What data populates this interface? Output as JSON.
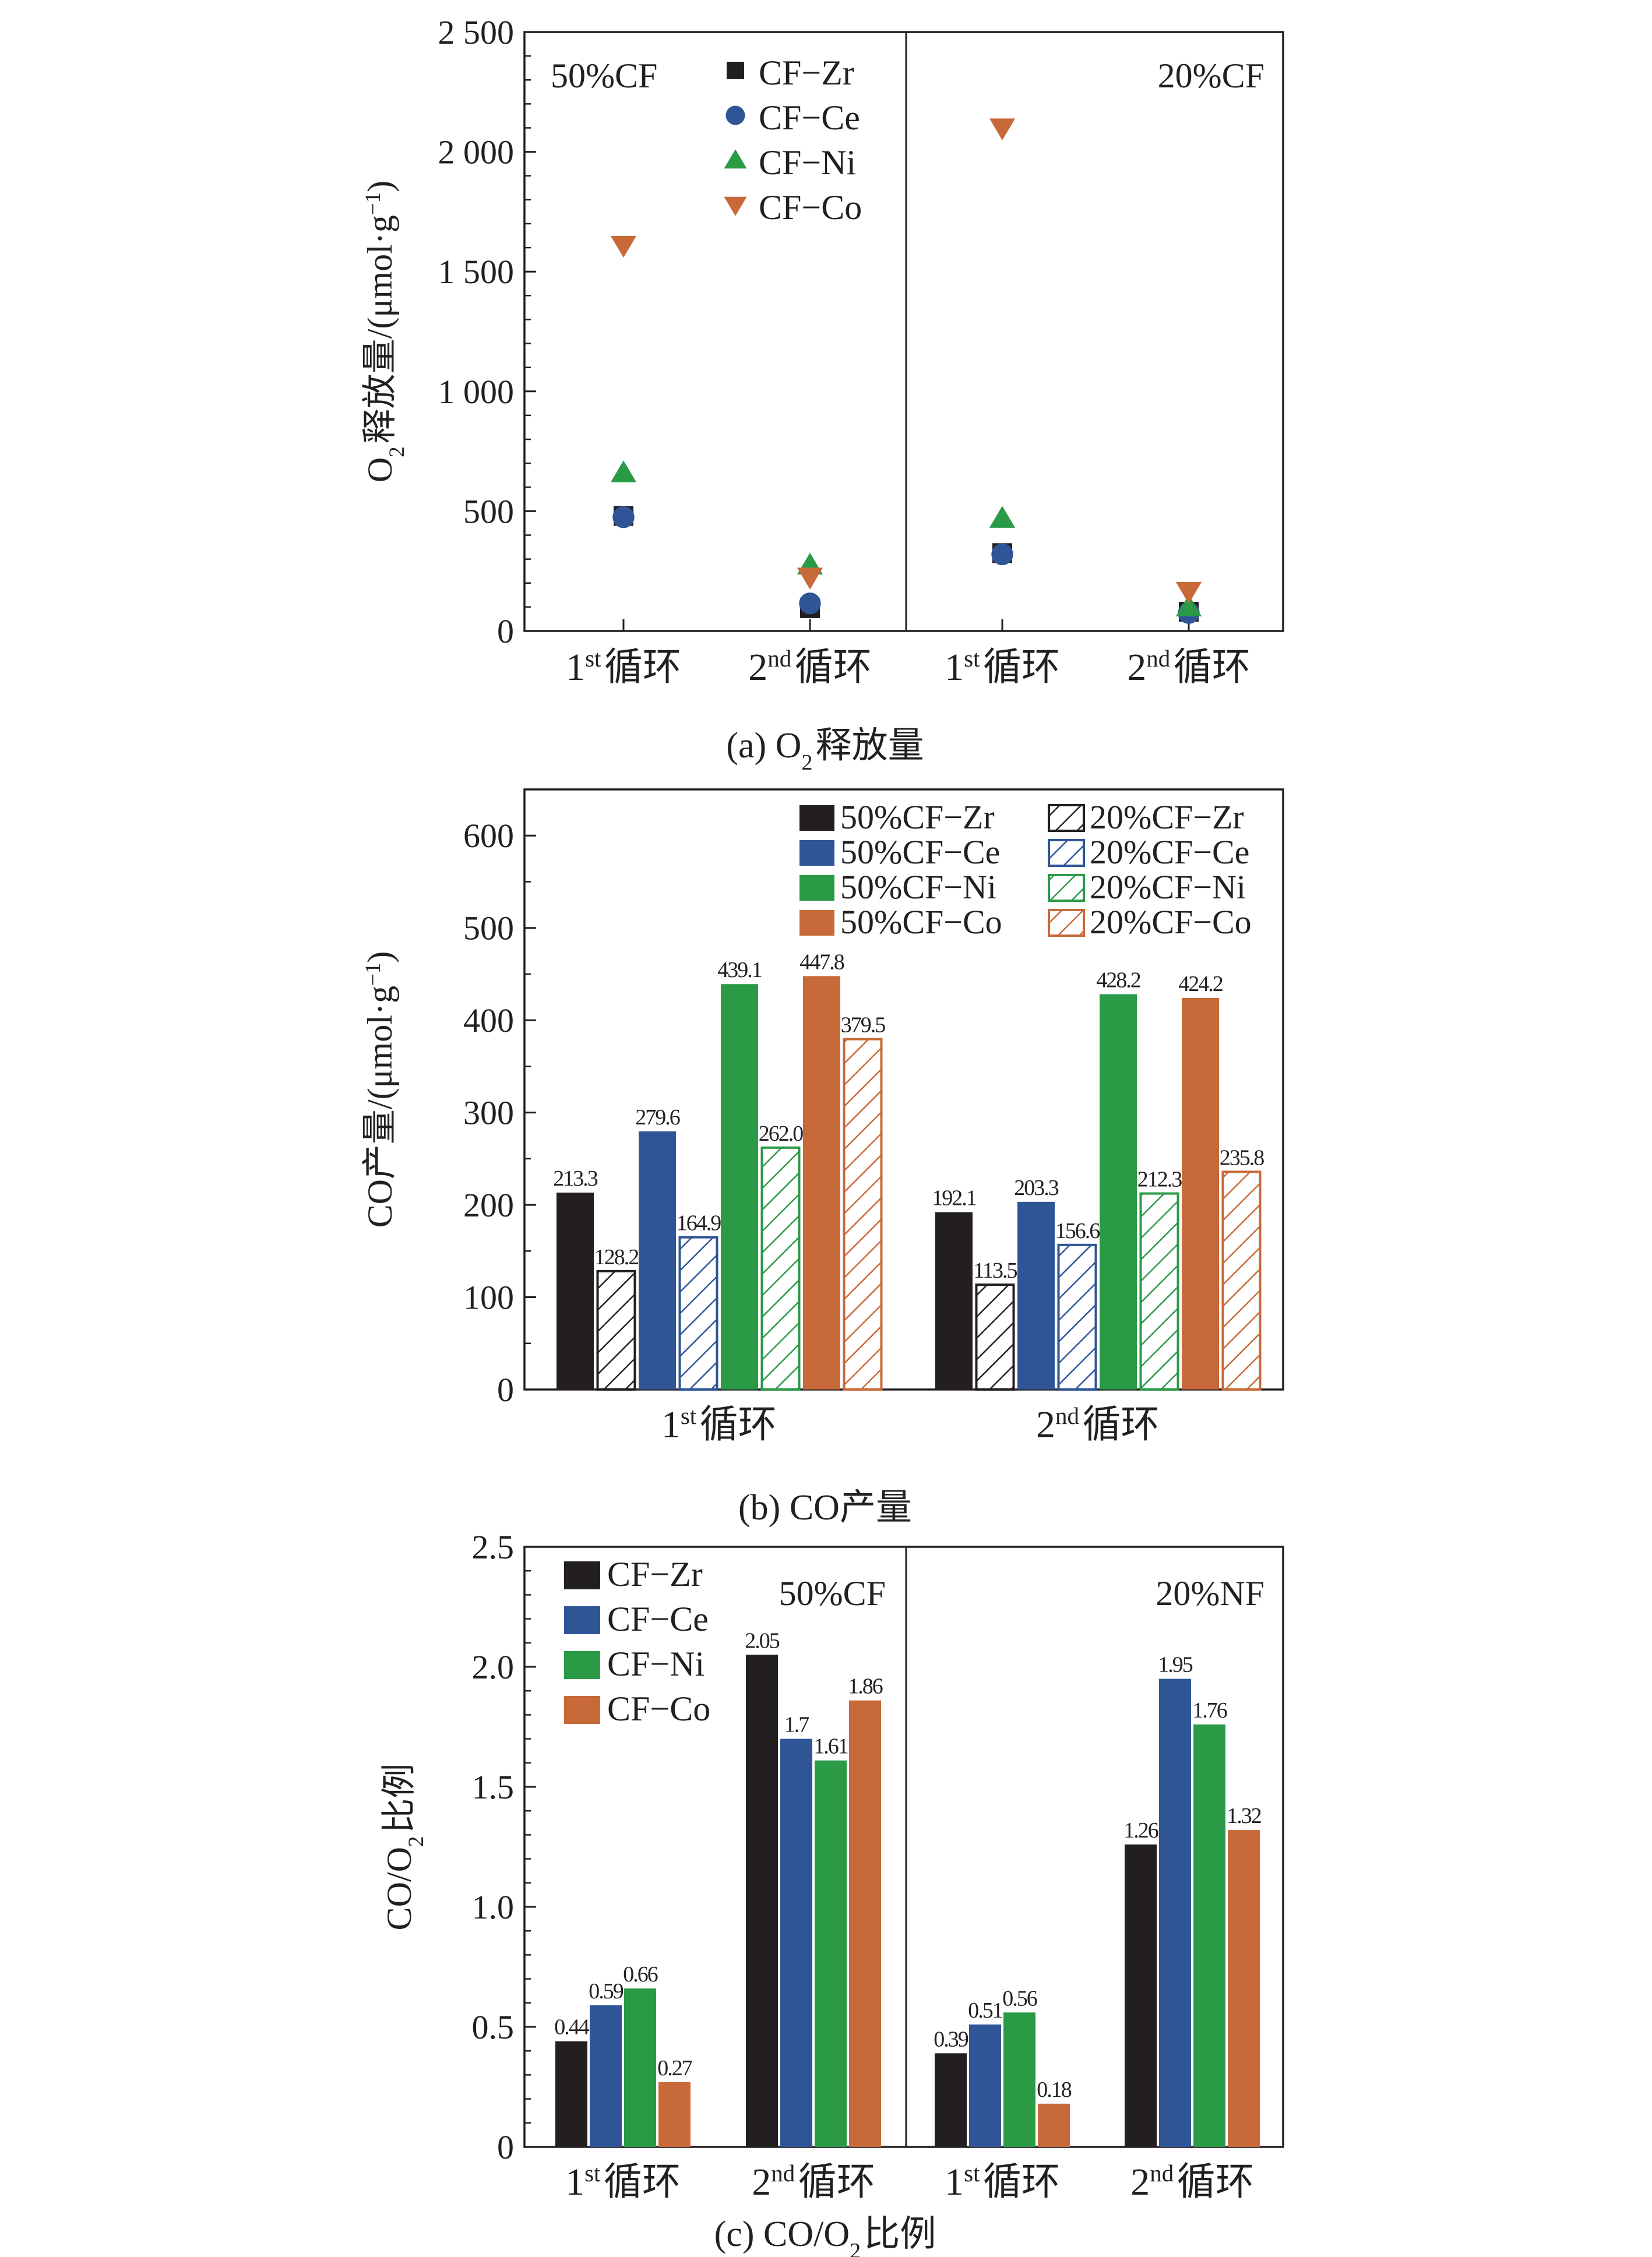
{
  "colors": {
    "zr": "#231f20",
    "ce": "#2f5597",
    "ni": "#2a9a47",
    "co": "#c8693a",
    "axis": "#231f20"
  },
  "chart_data": [
    {
      "id": "a",
      "type": "scatter",
      "caption": "(a) O₂释放量",
      "ylabel": "O₂释放量/(μmol·g⁻¹)",
      "ylim": [
        0,
        2500
      ],
      "yticks": [
        0,
        500,
        1000,
        1500,
        2000,
        2500
      ],
      "ytick_labels": [
        "0",
        "500",
        "1 000",
        "1 500",
        "2 000",
        "2 500"
      ],
      "panels": [
        {
          "label": "50%CF",
          "categories": [
            "1st循环",
            "2nd循环"
          ]
        },
        {
          "label": "20%CF",
          "categories": [
            "1st循环",
            "2nd循环"
          ]
        }
      ],
      "series": [
        {
          "name": "CF−Zr",
          "marker": "square",
          "color_key": "zr",
          "values": [
            [
              480,
              95
            ],
            [
              325,
              80
            ]
          ]
        },
        {
          "name": "CF−Ce",
          "marker": "circle",
          "color_key": "ce",
          "values": [
            [
              475,
              115
            ],
            [
              320,
              75
            ]
          ]
        },
        {
          "name": "CF−Ni",
          "marker": "triangle-up",
          "color_key": "ni",
          "values": [
            [
              660,
              275
            ],
            [
              470,
              100
            ]
          ]
        },
        {
          "name": "CF−Co",
          "marker": "triangle-down",
          "color_key": "co",
          "values": [
            [
              1610,
              225
            ],
            [
              2100,
              165
            ]
          ]
        }
      ],
      "legend_placement": "top-left of left panel"
    },
    {
      "id": "b",
      "type": "bar",
      "caption": "(b) CO产量",
      "ylabel": "CO产量/(μmol·g⁻¹)",
      "ylim": [
        0,
        650
      ],
      "yticks": [
        0,
        100,
        200,
        300,
        400,
        500,
        600
      ],
      "categories": [
        "1st循环",
        "2nd循环"
      ],
      "series": [
        {
          "name": "50%CF−Zr",
          "color_key": "zr",
          "hatched": false,
          "values": [
            213.3,
            192.1
          ],
          "labels": [
            "213.3",
            "192.1"
          ]
        },
        {
          "name": "20%CF−Zr",
          "color_key": "zr",
          "hatched": true,
          "values": [
            128.2,
            113.5
          ],
          "labels": [
            "128.2",
            "113.5"
          ]
        },
        {
          "name": "50%CF−Ce",
          "color_key": "ce",
          "hatched": false,
          "values": [
            279.6,
            203.3
          ],
          "labels": [
            "279.6",
            "203.3"
          ]
        },
        {
          "name": "20%CF−Ce",
          "color_key": "ce",
          "hatched": true,
          "values": [
            164.9,
            156.6
          ],
          "labels": [
            "164.9",
            "156.6"
          ]
        },
        {
          "name": "50%CF−Ni",
          "color_key": "ni",
          "hatched": false,
          "values": [
            439.1,
            428.2
          ],
          "labels": [
            "439.1",
            "428.2"
          ]
        },
        {
          "name": "20%CF−Ni",
          "color_key": "ni",
          "hatched": true,
          "values": [
            262.0,
            212.3
          ],
          "labels": [
            "262.0",
            "212.3"
          ]
        },
        {
          "name": "50%CF−Co",
          "color_key": "co",
          "hatched": false,
          "values": [
            447.8,
            424.2
          ],
          "labels": [
            "447.8",
            "424.2"
          ]
        },
        {
          "name": "20%CF−Co",
          "color_key": "co",
          "hatched": true,
          "values": [
            379.5,
            235.8
          ],
          "labels": [
            "379.5",
            "235.8"
          ]
        }
      ],
      "legend_placement": "top-right"
    },
    {
      "id": "c",
      "type": "bar",
      "caption": "(c) CO/O₂比例",
      "ylabel": "CO/O₂比例",
      "ylim": [
        0,
        2.5
      ],
      "yticks": [
        0,
        0.5,
        1.0,
        1.5,
        2.0,
        2.5
      ],
      "ytick_labels": [
        "0",
        "0.5",
        "1.0",
        "1.5",
        "2.0",
        "2.5"
      ],
      "panels": [
        {
          "label": "50%CF",
          "categories": [
            "1st循环",
            "2nd循环"
          ]
        },
        {
          "label": "20%NF",
          "categories": [
            "1st循环",
            "2nd循环"
          ]
        }
      ],
      "series": [
        {
          "name": "CF−Zr",
          "color_key": "zr",
          "values": [
            [
              0.44,
              2.05
            ],
            [
              0.39,
              1.26
            ]
          ],
          "labels": [
            [
              "0.44",
              "2.05"
            ],
            [
              "0.39",
              "1.26"
            ]
          ]
        },
        {
          "name": "CF−Ce",
          "color_key": "ce",
          "values": [
            [
              0.59,
              1.7
            ],
            [
              0.51,
              1.95
            ]
          ],
          "labels": [
            [
              "0.59",
              "1.7"
            ],
            [
              "0.51",
              "1.95"
            ]
          ]
        },
        {
          "name": "CF−Ni",
          "color_key": "ni",
          "values": [
            [
              0.66,
              1.61
            ],
            [
              0.56,
              1.76
            ]
          ],
          "labels": [
            [
              "0.66",
              "1.61"
            ],
            [
              "0.56",
              "1.76"
            ]
          ]
        },
        {
          "name": "CF−Co",
          "color_key": "co",
          "values": [
            [
              0.27,
              1.86
            ],
            [
              0.18,
              1.32
            ]
          ],
          "labels": [
            [
              "0.27",
              "1.86"
            ],
            [
              "0.18",
              "1.32"
            ]
          ]
        }
      ],
      "legend_placement": "top-left of left panel"
    }
  ]
}
